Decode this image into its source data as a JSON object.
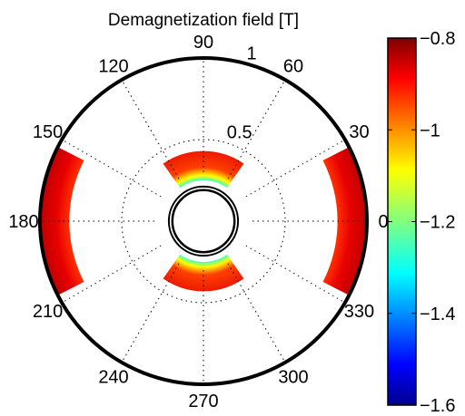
{
  "chart_data": {
    "type": "heatmap",
    "subtype": "polar",
    "title": "Demagnetization field [T]",
    "angular_ticks_deg": [
      90,
      60,
      30,
      0,
      330,
      300,
      270,
      240,
      210,
      180,
      150,
      120
    ],
    "angular_tick_labels": [
      "90",
      "60",
      "30",
      "0",
      "330",
      "300",
      "270",
      "240",
      "210",
      "180",
      "150",
      "120"
    ],
    "radial_ticks": [
      0.5,
      1
    ],
    "radial_tick_labels": [
      "0.5",
      "1"
    ],
    "radial_range": [
      0,
      1
    ],
    "grid": true,
    "colormap": "jet",
    "colorbar": {
      "range": [
        -1.6,
        -0.8
      ],
      "ticks": [
        -0.8,
        -1,
        -1.2,
        -1.4,
        -1.6
      ],
      "tick_labels": [
        "−0.8",
        "−1",
        "−1.2",
        "−1.4",
        "−1.6"
      ]
    },
    "regions": [
      {
        "name": "inner-lobe-top",
        "r_range": [
          0.25,
          0.43
        ],
        "theta_center_deg": 90,
        "theta_half_width_deg": 35,
        "value_inner": -1.6,
        "value_outer": -0.8
      },
      {
        "name": "inner-lobe-bottom",
        "r_range": [
          0.25,
          0.43
        ],
        "theta_center_deg": 270,
        "theta_half_width_deg": 35,
        "value_inner": -1.6,
        "value_outer": -0.8
      },
      {
        "name": "outer-band-right",
        "r_range": [
          0.82,
          1.0
        ],
        "theta_center_deg": 0,
        "theta_half_width_deg": 27,
        "value_inner": -0.95,
        "value_outer": -0.82
      },
      {
        "name": "outer-band-left",
        "r_range": [
          0.82,
          1.0
        ],
        "theta_center_deg": 180,
        "theta_half_width_deg": 27,
        "value_inner": -0.95,
        "value_outer": -0.82
      }
    ]
  }
}
